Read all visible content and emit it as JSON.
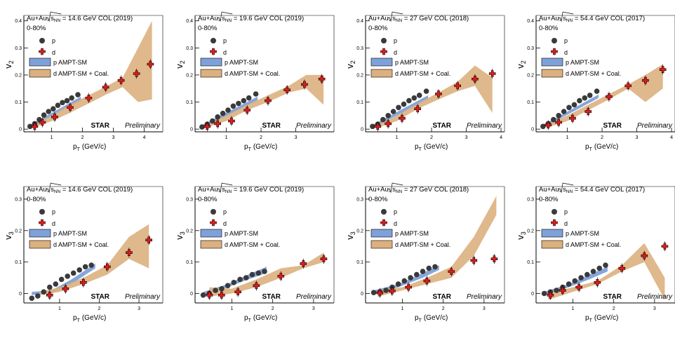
{
  "figure": {
    "collaboration": "STAR",
    "status": "Preliminary",
    "centrality": "0-80%",
    "system_prefix": "Au+Au,",
    "sqrt_s": "s",
    "sqrt_s_sub": "NN",
    "xlabel_main": "p",
    "xlabel_sub": "T",
    "xlabel_unit": "(GeV/c)",
    "colors": {
      "proton": "#3a3a3a",
      "deuteron": "#e41a1c",
      "ampt_p": "#7fa1d9",
      "ampt_d": "#dcb07f"
    }
  },
  "chart_data": [
    {
      "type": "scatter",
      "energy_label": "= 14.6 GeV COL (2019)",
      "ylabel": "v",
      "ylabel_sub": "2",
      "xlim": [
        0.1,
        4.6
      ],
      "ylim": [
        -0.01,
        0.42
      ],
      "xticks": [
        1,
        2,
        3,
        4
      ],
      "xtick_labels": [
        "1",
        "2",
        "3",
        "4"
      ],
      "yticks": [
        0,
        0.1,
        0.2,
        0.3,
        0.4
      ],
      "ytick_labels": [
        "0",
        "0.1",
        "0.2",
        "0.3",
        "0.4"
      ],
      "legend": [
        "p",
        "d",
        "p AMPT-SM",
        "d AMPT-SM + Coal."
      ],
      "series": [
        {
          "name": "p",
          "x": [
            0.3,
            0.45,
            0.6,
            0.75,
            0.9,
            1.05,
            1.2,
            1.35,
            1.5,
            1.65,
            1.85
          ],
          "y": [
            0.01,
            0.02,
            0.035,
            0.052,
            0.065,
            0.075,
            0.088,
            0.098,
            0.105,
            0.115,
            0.127
          ]
        },
        {
          "name": "d",
          "x": [
            0.45,
            0.7,
            1.1,
            1.6,
            2.2,
            2.75,
            3.25,
            3.75,
            4.2
          ],
          "y": [
            0.01,
            0.025,
            0.045,
            0.08,
            0.115,
            0.155,
            0.18,
            0.205,
            0.24
          ]
        }
      ],
      "bands": [
        {
          "name": "p AMPT-SM",
          "x": [
            0.3,
            1.95
          ],
          "low": [
            0.005,
            0.105
          ],
          "high": [
            0.015,
            0.12
          ]
        },
        {
          "name": "d AMPT-SM + Coal.",
          "x": [
            0.4,
            1.0,
            1.5,
            2.2,
            2.8,
            3.3,
            3.8,
            4.25
          ],
          "low": [
            0.005,
            0.03,
            0.055,
            0.095,
            0.13,
            0.155,
            0.1,
            0.11
          ],
          "high": [
            0.015,
            0.05,
            0.085,
            0.125,
            0.16,
            0.19,
            0.3,
            0.4
          ]
        }
      ]
    },
    {
      "type": "scatter",
      "energy_label": "= 19.6 GeV COL (2019)",
      "ylabel": "v",
      "ylabel_sub": "2",
      "xlim": [
        0.1,
        4.1
      ],
      "ylim": [
        -0.01,
        0.42
      ],
      "xticks": [
        1,
        2,
        3
      ],
      "xtick_labels": [
        "1",
        "2",
        "3"
      ],
      "yticks": [
        0,
        0.1,
        0.2,
        0.3,
        0.4
      ],
      "ytick_labels": [
        "0",
        "0.1",
        "0.2",
        "0.3",
        "0.4"
      ],
      "legend": [
        "p",
        "d",
        "p AMPT-SM",
        "d AMPT-SM + Coal."
      ],
      "series": [
        {
          "name": "p",
          "x": [
            0.3,
            0.45,
            0.6,
            0.75,
            0.9,
            1.05,
            1.2,
            1.35,
            1.5,
            1.65,
            1.85
          ],
          "y": [
            0.008,
            0.018,
            0.03,
            0.045,
            0.058,
            0.07,
            0.085,
            0.095,
            0.105,
            0.115,
            0.13
          ]
        },
        {
          "name": "d",
          "x": [
            0.45,
            0.75,
            1.15,
            1.6,
            2.2,
            2.75,
            3.25,
            3.75
          ],
          "y": [
            0.01,
            0.02,
            0.03,
            0.07,
            0.105,
            0.145,
            0.165,
            0.185
          ]
        }
      ],
      "bands": [
        {
          "name": "p AMPT-SM",
          "x": [
            0.3,
            1.9
          ],
          "low": [
            0.005,
            0.105
          ],
          "high": [
            0.015,
            0.12
          ]
        },
        {
          "name": "d AMPT-SM + Coal.",
          "x": [
            0.35,
            1.0,
            1.6,
            2.2,
            2.8,
            3.3,
            3.8
          ],
          "low": [
            0.003,
            0.03,
            0.07,
            0.1,
            0.135,
            0.15,
            0.09
          ],
          "high": [
            0.012,
            0.05,
            0.09,
            0.125,
            0.16,
            0.2,
            0.2
          ]
        }
      ]
    },
    {
      "type": "scatter",
      "energy_label": "= 27 GeV COL (2018)",
      "ylabel": "v",
      "ylabel_sub": "2",
      "xlim": [
        0.1,
        4.1
      ],
      "ylim": [
        -0.01,
        0.42
      ],
      "xticks": [
        1,
        2,
        3,
        4
      ],
      "xtick_labels": [
        "1",
        "2",
        "3",
        "4"
      ],
      "yticks": [
        0,
        0.1,
        0.2,
        0.3,
        0.4
      ],
      "ytick_labels": [
        "0",
        "0.1",
        "0.2",
        "0.3",
        "0.4"
      ],
      "legend": [
        "p",
        "d",
        "p AMPT-SM",
        "d AMPT-SM + Coal."
      ],
      "series": [
        {
          "name": "p",
          "x": [
            0.3,
            0.45,
            0.6,
            0.75,
            0.9,
            1.05,
            1.2,
            1.35,
            1.5,
            1.65,
            1.85
          ],
          "y": [
            0.01,
            0.018,
            0.035,
            0.05,
            0.065,
            0.08,
            0.092,
            0.105,
            0.115,
            0.125,
            0.14
          ]
        },
        {
          "name": "d",
          "x": [
            0.45,
            0.75,
            1.15,
            1.6,
            2.2,
            2.75,
            3.25,
            3.75
          ],
          "y": [
            0.01,
            0.02,
            0.04,
            0.075,
            0.13,
            0.16,
            0.185,
            0.205
          ]
        }
      ],
      "bands": [
        {
          "name": "p AMPT-SM",
          "x": [
            0.3,
            1.9
          ],
          "low": [
            0.005,
            0.11
          ],
          "high": [
            0.015,
            0.125
          ]
        },
        {
          "name": "d AMPT-SM + Coal.",
          "x": [
            0.4,
            1.0,
            1.6,
            2.2,
            2.75,
            3.25,
            3.75
          ],
          "low": [
            0.003,
            0.03,
            0.075,
            0.11,
            0.14,
            0.16,
            0.06
          ],
          "high": [
            0.012,
            0.05,
            0.095,
            0.135,
            0.175,
            0.235,
            0.19
          ]
        }
      ]
    },
    {
      "type": "scatter",
      "energy_label": "= 54.4 GeV COL (2017)",
      "ylabel": "v",
      "ylabel_sub": "2",
      "xlim": [
        0.1,
        4.1
      ],
      "ylim": [
        -0.01,
        0.42
      ],
      "xticks": [
        1,
        2,
        3,
        4
      ],
      "xtick_labels": [
        "1",
        "2",
        "3",
        "4"
      ],
      "yticks": [
        0,
        0.1,
        0.2,
        0.3,
        0.4
      ],
      "ytick_labels": [
        "0",
        "0.1",
        "0.2",
        "0.3",
        "0.4"
      ],
      "legend": [
        "p",
        "d",
        "p AMPT-SM",
        "d AMPT-SM + Coal."
      ],
      "series": [
        {
          "name": "p",
          "x": [
            0.3,
            0.45,
            0.6,
            0.75,
            0.9,
            1.05,
            1.2,
            1.35,
            1.5,
            1.65,
            1.85
          ],
          "y": [
            0.01,
            0.02,
            0.035,
            0.05,
            0.065,
            0.08,
            0.09,
            0.105,
            0.115,
            0.125,
            0.14
          ]
        },
        {
          "name": "d",
          "x": [
            0.45,
            0.75,
            1.15,
            1.6,
            2.2,
            2.75,
            3.25,
            3.75
          ],
          "y": [
            0.015,
            0.025,
            0.04,
            0.065,
            0.12,
            0.16,
            0.18,
            0.22
          ]
        }
      ],
      "bands": [
        {
          "name": "p AMPT-SM",
          "x": [
            0.3,
            1.9
          ],
          "low": [
            0.005,
            0.115
          ],
          "high": [
            0.015,
            0.128
          ]
        },
        {
          "name": "d AMPT-SM + Coal.",
          "x": [
            0.4,
            1.0,
            1.6,
            2.2,
            2.75,
            3.25,
            3.75
          ],
          "low": [
            0.005,
            0.03,
            0.07,
            0.11,
            0.15,
            0.1,
            0.15
          ],
          "high": [
            0.015,
            0.05,
            0.09,
            0.13,
            0.165,
            0.2,
            0.24
          ]
        }
      ]
    },
    {
      "type": "scatter",
      "energy_label": "= 14.6 GeV COL (2019)",
      "ylabel": "v",
      "ylabel_sub": "3",
      "xlim": [
        0.1,
        3.6
      ],
      "ylim": [
        -0.03,
        0.34
      ],
      "xticks": [
        1,
        2,
        3
      ],
      "xtick_labels": [
        "1",
        "2",
        "3"
      ],
      "yticks": [
        0,
        0.1,
        0.2,
        0.3
      ],
      "ytick_labels": [
        "0",
        "0.1",
        "0.2",
        "0.3"
      ],
      "legend": [
        "p",
        "d",
        "p AMPT-SM",
        "d AMPT-SM + Coal."
      ],
      "series": [
        {
          "name": "p",
          "x": [
            0.3,
            0.45,
            0.6,
            0.75,
            0.9,
            1.05,
            1.2,
            1.35,
            1.5,
            1.65,
            1.8
          ],
          "y": [
            -0.015,
            -0.008,
            0.005,
            0.02,
            0.03,
            0.045,
            0.055,
            0.065,
            0.075,
            0.085,
            0.09
          ]
        },
        {
          "name": "d",
          "x": [
            0.75,
            1.15,
            1.6,
            2.2,
            2.75,
            3.25
          ],
          "y": [
            -0.005,
            0.015,
            0.035,
            0.085,
            0.13,
            0.17
          ]
        }
      ],
      "bands": [
        {
          "name": "p AMPT-SM",
          "x": [
            0.3,
            0.8,
            1.3,
            1.9
          ],
          "low": [
            -0.005,
            0.0,
            0.03,
            0.08
          ],
          "high": [
            0.005,
            0.01,
            0.045,
            0.095
          ]
        },
        {
          "name": "d AMPT-SM + Coal.",
          "x": [
            0.5,
            1.0,
            1.6,
            2.2,
            2.75,
            3.25
          ],
          "low": [
            -0.005,
            0.005,
            0.03,
            0.06,
            0.11,
            0.08
          ],
          "high": [
            0.005,
            0.02,
            0.05,
            0.09,
            0.18,
            0.22
          ]
        }
      ]
    },
    {
      "type": "scatter",
      "energy_label": "= 19.6 GeV COL (2019)",
      "ylabel": "v",
      "ylabel_sub": "3",
      "xlim": [
        0.1,
        3.5
      ],
      "ylim": [
        -0.03,
        0.34
      ],
      "xticks": [
        1,
        2,
        3
      ],
      "xtick_labels": [
        "1",
        "2",
        "3"
      ],
      "yticks": [
        0,
        0.1,
        0.2,
        0.3
      ],
      "ytick_labels": [
        "0",
        "0.1",
        "0.2",
        "0.3"
      ],
      "legend": [
        "p",
        "d",
        "p AMPT-SM",
        "d AMPT-SM + Coal."
      ],
      "series": [
        {
          "name": "p",
          "x": [
            0.3,
            0.45,
            0.6,
            0.75,
            0.9,
            1.05,
            1.2,
            1.35,
            1.5,
            1.65,
            1.8
          ],
          "y": [
            -0.005,
            0.0,
            0.01,
            0.015,
            0.025,
            0.035,
            0.045,
            0.05,
            0.06,
            0.065,
            0.07
          ]
        },
        {
          "name": "d",
          "x": [
            0.45,
            0.75,
            1.15,
            1.6,
            2.2,
            2.75,
            3.25
          ],
          "y": [
            -0.005,
            -0.005,
            0.005,
            0.025,
            0.055,
            0.095,
            0.11
          ]
        }
      ],
      "bands": [
        {
          "name": "p AMPT-SM",
          "x": [
            0.3,
            0.9,
            1.4,
            1.85
          ],
          "low": [
            -0.005,
            0.02,
            0.045,
            0.065
          ],
          "high": [
            0.005,
            0.03,
            0.06,
            0.085
          ]
        },
        {
          "name": "d AMPT-SM + Coal.",
          "x": [
            0.45,
            1.0,
            1.6,
            2.2,
            2.75,
            3.25
          ],
          "low": [
            -0.01,
            0.0,
            0.02,
            0.05,
            0.08,
            0.1
          ],
          "high": [
            0.02,
            0.015,
            0.045,
            0.08,
            0.09,
            0.13
          ]
        }
      ]
    },
    {
      "type": "scatter",
      "energy_label": "= 27 GeV COL (2018)",
      "ylabel": "v",
      "ylabel_sub": "3",
      "xlim": [
        0.1,
        3.5
      ],
      "ylim": [
        -0.03,
        0.34
      ],
      "xticks": [
        1,
        2,
        3
      ],
      "xtick_labels": [
        "1",
        "2",
        "3"
      ],
      "yticks": [
        0,
        0.1,
        0.2,
        0.3
      ],
      "ytick_labels": [
        "0",
        "0.1",
        "0.2",
        "0.3"
      ],
      "legend": [
        "p",
        "d",
        "p AMPT-SM",
        "d AMPT-SM + Coal."
      ],
      "series": [
        {
          "name": "p",
          "x": [
            0.3,
            0.45,
            0.6,
            0.75,
            0.9,
            1.05,
            1.2,
            1.35,
            1.5,
            1.65,
            1.8
          ],
          "y": [
            0.003,
            0.005,
            0.01,
            0.02,
            0.03,
            0.04,
            0.05,
            0.06,
            0.07,
            0.08,
            0.085
          ]
        },
        {
          "name": "d",
          "x": [
            0.45,
            0.75,
            1.15,
            1.6,
            2.2,
            2.75,
            3.25
          ],
          "y": [
            0.002,
            0.008,
            0.02,
            0.04,
            0.07,
            0.105,
            0.11
          ]
        }
      ],
      "bands": [
        {
          "name": "p AMPT-SM",
          "x": [
            0.3,
            0.9,
            1.5,
            1.9
          ],
          "low": [
            0.0,
            0.02,
            0.05,
            0.075
          ],
          "high": [
            0.01,
            0.03,
            0.065,
            0.09
          ]
        },
        {
          "name": "d AMPT-SM + Coal.",
          "x": [
            0.4,
            1.0,
            1.6,
            2.2,
            2.75,
            3.3
          ],
          "low": [
            -0.01,
            0.01,
            0.03,
            0.05,
            0.12,
            0.25
          ],
          "high": [
            0.01,
            0.02,
            0.05,
            0.085,
            0.18,
            0.31
          ]
        }
      ]
    },
    {
      "type": "scatter",
      "energy_label": "= 54.4 GeV COL (2017)",
      "ylabel": "v",
      "ylabel_sub": "3",
      "xlim": [
        0.1,
        3.5
      ],
      "ylim": [
        -0.03,
        0.34
      ],
      "xticks": [
        1,
        2,
        3
      ],
      "xtick_labels": [
        "1",
        "2",
        "3"
      ],
      "yticks": [
        0,
        0.1,
        0.2,
        0.3
      ],
      "ytick_labels": [
        "0",
        "0.1",
        "0.2",
        "0.3"
      ],
      "legend": [
        "p",
        "d",
        "p AMPT-SM",
        "d AMPT-SM + Coal."
      ],
      "series": [
        {
          "name": "p",
          "x": [
            0.3,
            0.45,
            0.6,
            0.75,
            0.9,
            1.05,
            1.2,
            1.35,
            1.5,
            1.65,
            1.8
          ],
          "y": [
            0.0,
            0.005,
            0.01,
            0.02,
            0.03,
            0.04,
            0.05,
            0.06,
            0.07,
            0.08,
            0.09
          ]
        },
        {
          "name": "d",
          "x": [
            0.45,
            0.75,
            1.15,
            1.6,
            2.2,
            2.75,
            3.25
          ],
          "y": [
            -0.005,
            0.01,
            0.02,
            0.035,
            0.08,
            0.12,
            0.15
          ]
        }
      ],
      "bands": [
        {
          "name": "p AMPT-SM",
          "x": [
            0.3,
            0.9,
            1.4,
            1.85
          ],
          "low": [
            -0.005,
            0.02,
            0.045,
            0.07
          ],
          "high": [
            0.005,
            0.03,
            0.06,
            0.085
          ]
        },
        {
          "name": "d AMPT-SM + Coal.",
          "x": [
            0.4,
            1.0,
            1.6,
            2.2,
            2.75,
            3.25
          ],
          "low": [
            -0.02,
            0.005,
            0.03,
            0.07,
            0.1,
            -0.02
          ],
          "high": [
            0.0,
            0.02,
            0.04,
            0.09,
            0.16,
            0.05
          ]
        }
      ]
    }
  ]
}
